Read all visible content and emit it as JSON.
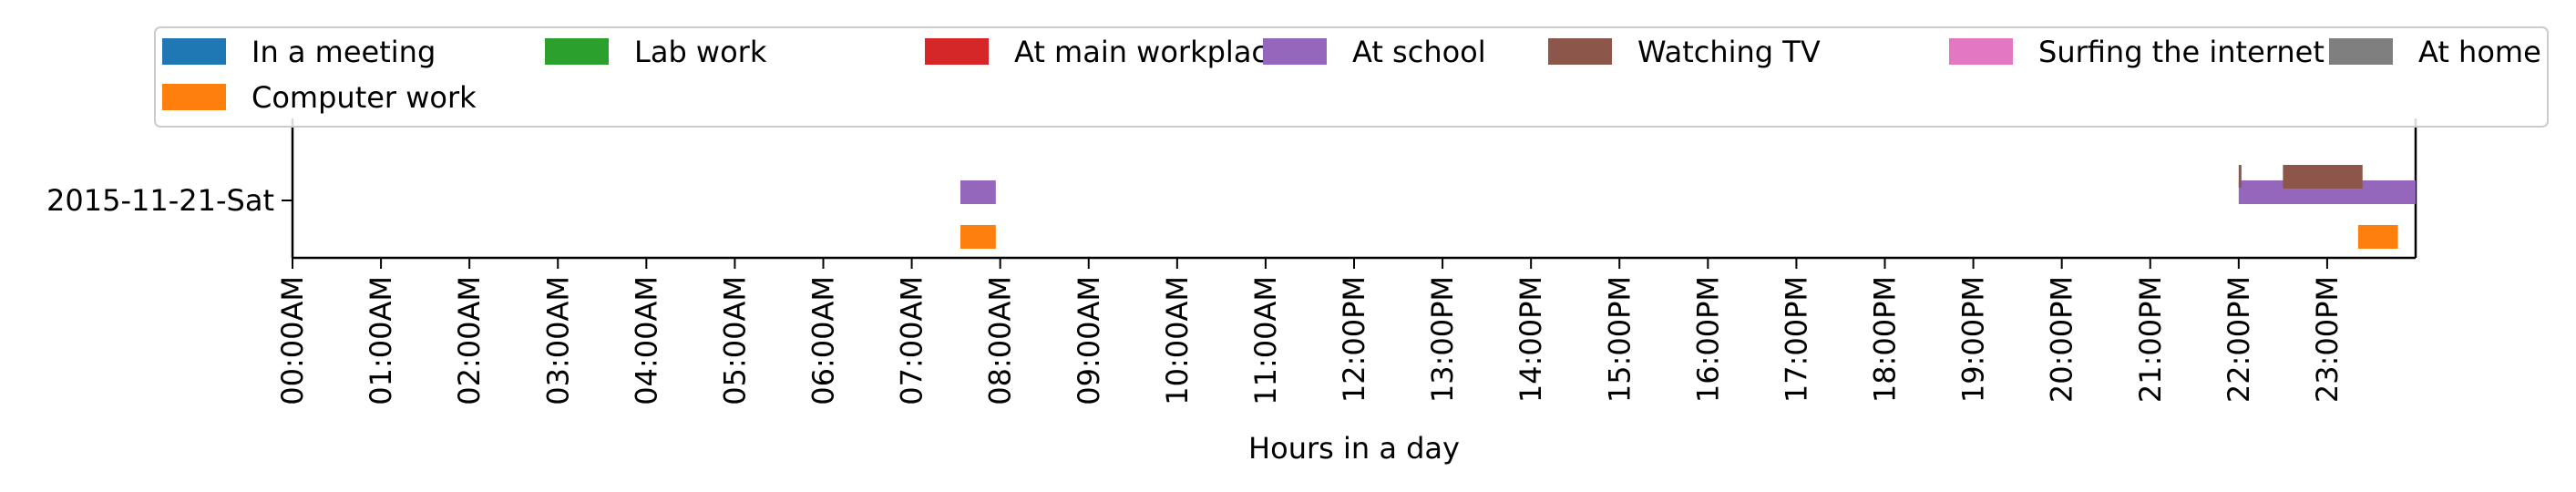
{
  "chart_data": {
    "type": "timeline",
    "title": "",
    "xlabel": "Hours in a day",
    "ylabel": "",
    "xlim": [
      0,
      24
    ],
    "x_ticks": [
      {
        "value": 0,
        "label": "00:00AM"
      },
      {
        "value": 1,
        "label": "01:00AM"
      },
      {
        "value": 2,
        "label": "02:00AM"
      },
      {
        "value": 3,
        "label": "03:00AM"
      },
      {
        "value": 4,
        "label": "04:00AM"
      },
      {
        "value": 5,
        "label": "05:00AM"
      },
      {
        "value": 6,
        "label": "06:00AM"
      },
      {
        "value": 7,
        "label": "07:00AM"
      },
      {
        "value": 8,
        "label": "08:00AM"
      },
      {
        "value": 9,
        "label": "09:00AM"
      },
      {
        "value": 10,
        "label": "10:00AM"
      },
      {
        "value": 11,
        "label": "11:00AM"
      },
      {
        "value": 12,
        "label": "12:00PM"
      },
      {
        "value": 13,
        "label": "13:00PM"
      },
      {
        "value": 14,
        "label": "14:00PM"
      },
      {
        "value": 15,
        "label": "15:00PM"
      },
      {
        "value": 16,
        "label": "16:00PM"
      },
      {
        "value": 17,
        "label": "17:00PM"
      },
      {
        "value": 18,
        "label": "18:00PM"
      },
      {
        "value": 19,
        "label": "19:00PM"
      },
      {
        "value": 20,
        "label": "20:00PM"
      },
      {
        "value": 21,
        "label": "21:00PM"
      },
      {
        "value": 22,
        "label": "22:00PM"
      },
      {
        "value": 23,
        "label": "23:00PM"
      }
    ],
    "y_categories": [
      "2015-11-21-Sat"
    ],
    "grid": false,
    "legend": {
      "placement": "top",
      "ncol": 7,
      "entries": [
        {
          "name": "In a meeting",
          "color": "#1f77b4"
        },
        {
          "name": "Lab work",
          "color": "#2ca02c"
        },
        {
          "name": "At main workplace",
          "color": "#d62728"
        },
        {
          "name": "At school",
          "color": "#9467bd"
        },
        {
          "name": "Watching TV",
          "color": "#8c564b"
        },
        {
          "name": "Surfing the internet",
          "color": "#e377c2"
        },
        {
          "name": "At home",
          "color": "#7f7f7f"
        },
        {
          "name": "Computer work",
          "color": "#ff7f0e"
        }
      ]
    },
    "series": [
      {
        "activity": "At school",
        "day": "2015-11-21-Sat",
        "intervals": [
          [
            7.55,
            7.95
          ],
          [
            22.0,
            24.0
          ]
        ]
      },
      {
        "activity": "Computer work",
        "day": "2015-11-21-Sat",
        "intervals": [
          [
            7.55,
            7.95
          ],
          [
            23.35,
            23.8
          ]
        ]
      },
      {
        "activity": "Watching TV",
        "day": "2015-11-21-Sat",
        "intervals": [
          [
            22.0,
            22.03
          ],
          [
            22.5,
            23.4
          ]
        ]
      }
    ]
  }
}
